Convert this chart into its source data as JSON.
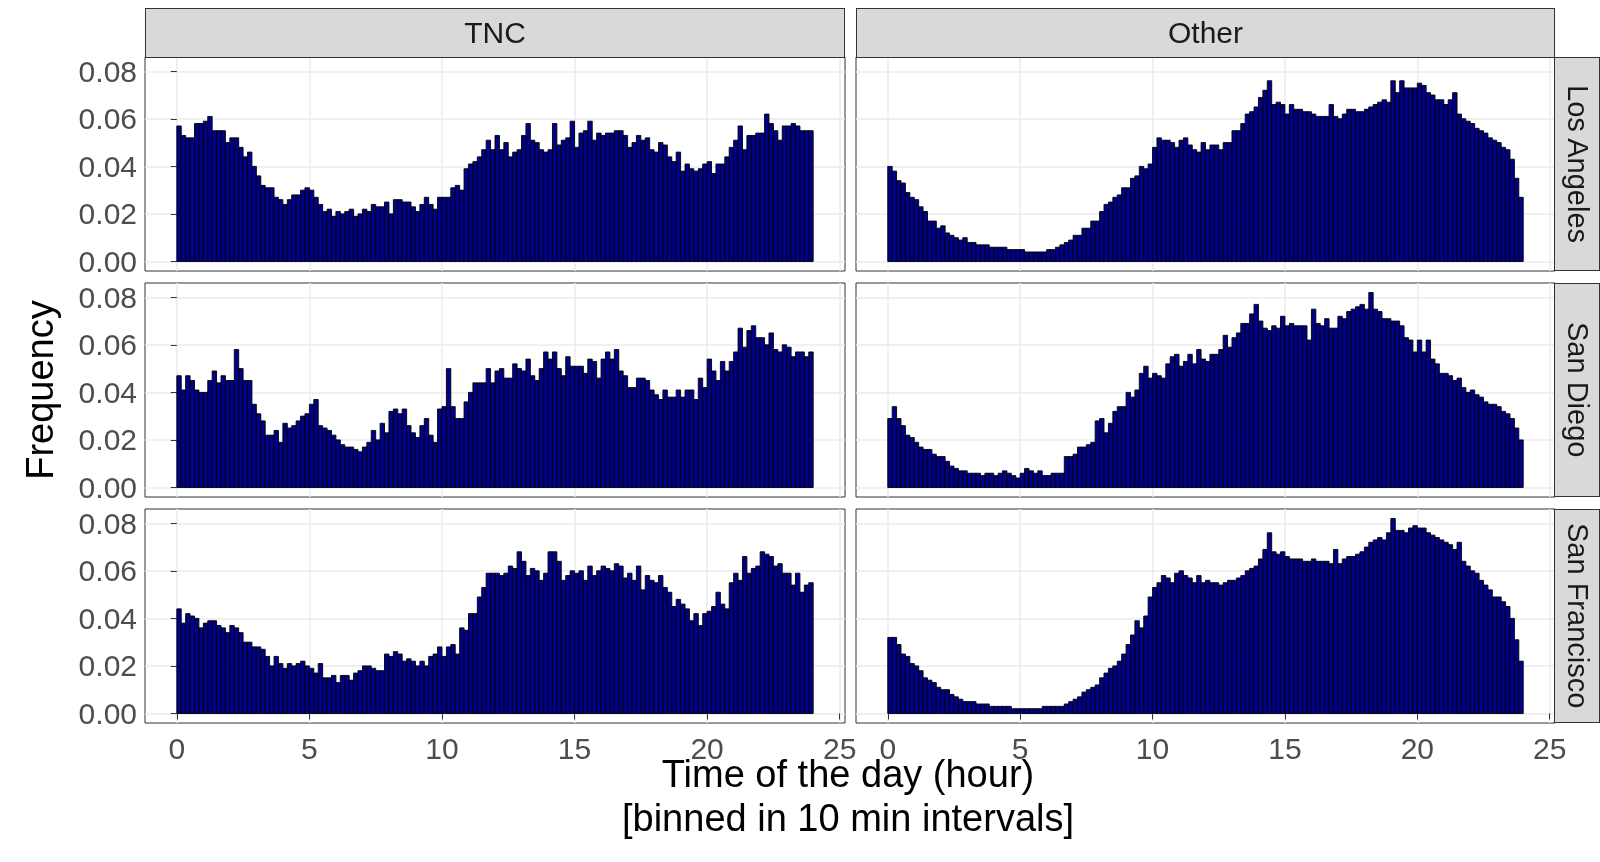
{
  "chart_data": [
    {
      "type": "histogram",
      "title": "TNC",
      "color": "#00008b",
      "tick_labels": "y",
      "grid": true,
      "xlim": [
        -1.2,
        25.2
      ],
      "xticks": [
        0,
        5,
        10,
        15,
        20,
        25
      ],
      "ylim": [
        -0.004,
        0.086
      ],
      "yticks": [
        {
          "value": 0,
          "label": "0.00"
        },
        {
          "value": 0.02,
          "label": "0.02"
        },
        {
          "value": 0.04,
          "label": "0.04"
        },
        {
          "value": 0.06,
          "label": "0.06"
        },
        {
          "value": 0.08,
          "label": "0.08"
        }
      ],
      "bins": [
        0,
        0.167,
        0.333,
        0.5,
        0.667,
        0.833,
        1,
        1.167,
        1.333,
        1.5,
        1.667,
        1.833,
        2,
        2.167,
        2.333,
        2.5,
        2.667,
        2.833,
        3,
        3.167,
        3.333,
        3.5,
        3.667,
        3.833,
        4,
        4.167,
        4.333,
        4.5,
        4.667,
        4.833,
        5,
        5.167,
        5.333,
        5.5,
        5.667,
        5.833,
        6,
        6.167,
        6.333,
        6.5,
        6.667,
        6.833,
        7,
        7.167,
        7.333,
        7.5,
        7.667,
        7.833,
        8,
        8.167,
        8.333,
        8.5,
        8.667,
        8.833,
        9,
        9.167,
        9.333,
        9.5,
        9.667,
        9.833,
        10,
        10.167,
        10.333,
        10.5,
        10.667,
        10.833,
        11,
        11.167,
        11.333,
        11.5,
        11.667,
        11.833,
        12,
        12.167,
        12.333,
        12.5,
        12.667,
        12.833,
        13,
        13.167,
        13.333,
        13.5,
        13.667,
        13.833,
        14,
        14.167,
        14.333,
        14.5,
        14.667,
        14.833,
        15,
        15.167,
        15.333,
        15.5,
        15.667,
        15.833,
        16,
        16.167,
        16.333,
        16.5,
        16.667,
        16.833,
        17,
        17.167,
        17.333,
        17.5,
        17.667,
        17.833,
        18,
        18.167,
        18.333,
        18.5,
        18.667,
        18.833,
        19,
        19.167,
        19.333,
        19.5,
        19.667,
        19.833,
        20,
        20.167,
        20.333,
        20.5,
        20.667,
        20.833,
        21,
        21.167,
        21.333,
        21.5,
        21.667,
        21.833,
        22,
        22.167,
        22.333,
        22.5,
        22.667,
        22.833,
        23,
        23.167,
        23.333,
        23.5,
        23.667,
        23.833,
        24
      ],
      "values": [
        0.057,
        0.053,
        0.052,
        0.052,
        0.058,
        0.058,
        0.059,
        0.061,
        0.055,
        0.055,
        0.055,
        0.05,
        0.052,
        0.052,
        0.048,
        0.044,
        0.046,
        0.04,
        0.036,
        0.032,
        0.031,
        0.031,
        0.027,
        0.026,
        0.024,
        0.026,
        0.028,
        0.028,
        0.03,
        0.031,
        0.03,
        0.027,
        0.024,
        0.021,
        0.022,
        0.019,
        0.021,
        0.02,
        0.021,
        0.022,
        0.019,
        0.02,
        0.022,
        0.021,
        0.024,
        0.023,
        0.023,
        0.025,
        0.02,
        0.026,
        0.026,
        0.025,
        0.025,
        0.023,
        0.021,
        0.024,
        0.027,
        0.024,
        0.022,
        0.027,
        0.027,
        0.027,
        0.031,
        0.032,
        0.03,
        0.039,
        0.041,
        0.042,
        0.044,
        0.047,
        0.051,
        0.047,
        0.053,
        0.047,
        0.05,
        0.044,
        0.046,
        0.047,
        0.053,
        0.058,
        0.051,
        0.05,
        0.047,
        0.046,
        0.047,
        0.058,
        0.049,
        0.051,
        0.052,
        0.059,
        0.048,
        0.054,
        0.055,
        0.059,
        0.051,
        0.054,
        0.053,
        0.054,
        0.054,
        0.055,
        0.055,
        0.053,
        0.048,
        0.05,
        0.053,
        0.051,
        0.052,
        0.047,
        0.046,
        0.05,
        0.049,
        0.044,
        0.042,
        0.046,
        0.038,
        0.041,
        0.039,
        0.038,
        0.039,
        0.041,
        0.042,
        0.037,
        0.041,
        0.041,
        0.044,
        0.048,
        0.051,
        0.057,
        0.047,
        0.053,
        0.053,
        0.054,
        0.054,
        0.062,
        0.058,
        0.055,
        0.051,
        0.057,
        0.057,
        0.058,
        0.057,
        0.055,
        0.055,
        0.055
      ]
    },
    {
      "type": "histogram",
      "title": "Other",
      "annotations": [
        "Los Angeles"
      ],
      "color": "#00008b",
      "tick_labels": false,
      "grid": true,
      "xlim": [
        -1.2,
        25.2
      ],
      "xticks": [
        0,
        5,
        10,
        15,
        20,
        25
      ],
      "ylim": [
        -0.004,
        0.086
      ],
      "yticks": [
        0,
        0.02,
        0.04,
        0.06,
        0.08
      ],
      "bins": [
        0,
        0.167,
        0.333,
        0.5,
        0.667,
        0.833,
        1,
        1.167,
        1.333,
        1.5,
        1.667,
        1.833,
        2,
        2.167,
        2.333,
        2.5,
        2.667,
        2.833,
        3,
        3.167,
        3.333,
        3.5,
        3.667,
        3.833,
        4,
        4.167,
        4.333,
        4.5,
        4.667,
        4.833,
        5,
        5.167,
        5.333,
        5.5,
        5.667,
        5.833,
        6,
        6.167,
        6.333,
        6.5,
        6.667,
        6.833,
        7,
        7.167,
        7.333,
        7.5,
        7.667,
        7.833,
        8,
        8.167,
        8.333,
        8.5,
        8.667,
        8.833,
        9,
        9.167,
        9.333,
        9.5,
        9.667,
        9.833,
        10,
        10.167,
        10.333,
        10.5,
        10.667,
        10.833,
        11,
        11.167,
        11.333,
        11.5,
        11.667,
        11.833,
        12,
        12.167,
        12.333,
        12.5,
        12.667,
        12.833,
        13,
        13.167,
        13.333,
        13.5,
        13.667,
        13.833,
        14,
        14.167,
        14.333,
        14.5,
        14.667,
        14.833,
        15,
        15.167,
        15.333,
        15.5,
        15.667,
        15.833,
        16,
        16.167,
        16.333,
        16.5,
        16.667,
        16.833,
        17,
        17.167,
        17.333,
        17.5,
        17.667,
        17.833,
        18,
        18.167,
        18.333,
        18.5,
        18.667,
        18.833,
        19,
        19.167,
        19.333,
        19.5,
        19.667,
        19.833,
        20,
        20.167,
        20.333,
        20.5,
        20.667,
        20.833,
        21,
        21.167,
        21.333,
        21.5,
        21.667,
        21.833,
        22,
        22.167,
        22.333,
        22.5,
        22.667,
        22.833,
        23,
        23.167,
        23.333,
        23.5,
        23.667,
        23.833,
        24
      ],
      "values": [
        0.04,
        0.038,
        0.034,
        0.033,
        0.029,
        0.027,
        0.026,
        0.023,
        0.021,
        0.017,
        0.017,
        0.014,
        0.015,
        0.012,
        0.011,
        0.01,
        0.009,
        0.01,
        0.008,
        0.008,
        0.007,
        0.007,
        0.007,
        0.006,
        0.006,
        0.006,
        0.006,
        0.005,
        0.005,
        0.005,
        0.005,
        0.004,
        0.004,
        0.004,
        0.004,
        0.004,
        0.005,
        0.005,
        0.006,
        0.007,
        0.008,
        0.009,
        0.011,
        0.011,
        0.014,
        0.014,
        0.017,
        0.017,
        0.021,
        0.024,
        0.025,
        0.027,
        0.028,
        0.031,
        0.031,
        0.035,
        0.036,
        0.04,
        0.039,
        0.041,
        0.048,
        0.052,
        0.051,
        0.051,
        0.05,
        0.048,
        0.051,
        0.052,
        0.049,
        0.047,
        0.046,
        0.05,
        0.047,
        0.049,
        0.049,
        0.047,
        0.05,
        0.05,
        0.055,
        0.055,
        0.058,
        0.062,
        0.063,
        0.065,
        0.069,
        0.072,
        0.076,
        0.066,
        0.067,
        0.066,
        0.062,
        0.066,
        0.064,
        0.064,
        0.063,
        0.063,
        0.062,
        0.061,
        0.061,
        0.061,
        0.066,
        0.061,
        0.06,
        0.062,
        0.064,
        0.064,
        0.063,
        0.063,
        0.064,
        0.065,
        0.066,
        0.067,
        0.068,
        0.067,
        0.076,
        0.071,
        0.076,
        0.073,
        0.073,
        0.073,
        0.075,
        0.074,
        0.071,
        0.07,
        0.068,
        0.068,
        0.066,
        0.068,
        0.071,
        0.062,
        0.06,
        0.059,
        0.058,
        0.056,
        0.055,
        0.054,
        0.052,
        0.051,
        0.05,
        0.048,
        0.047,
        0.043,
        0.035,
        0.027
      ]
    },
    {
      "type": "histogram",
      "ylabel": "Frequency",
      "color": "#00008b",
      "tick_labels": "y",
      "grid": true,
      "xlim": [
        -1.2,
        25.2
      ],
      "xticks": [
        0,
        5,
        10,
        15,
        20,
        25
      ],
      "ylim": [
        -0.004,
        0.086
      ],
      "yticks": [
        {
          "value": 0,
          "label": "0.00"
        },
        {
          "value": 0.02,
          "label": "0.02"
        },
        {
          "value": 0.04,
          "label": "0.04"
        },
        {
          "value": 0.06,
          "label": "0.06"
        },
        {
          "value": 0.08,
          "label": "0.08"
        }
      ],
      "bins": [
        0,
        0.167,
        0.333,
        0.5,
        0.667,
        0.833,
        1,
        1.167,
        1.333,
        1.5,
        1.667,
        1.833,
        2,
        2.167,
        2.333,
        2.5,
        2.667,
        2.833,
        3,
        3.167,
        3.333,
        3.5,
        3.667,
        3.833,
        4,
        4.167,
        4.333,
        4.5,
        4.667,
        4.833,
        5,
        5.167,
        5.333,
        5.5,
        5.667,
        5.833,
        6,
        6.167,
        6.333,
        6.5,
        6.667,
        6.833,
        7,
        7.167,
        7.333,
        7.5,
        7.667,
        7.833,
        8,
        8.167,
        8.333,
        8.5,
        8.667,
        8.833,
        9,
        9.167,
        9.333,
        9.5,
        9.667,
        9.833,
        10,
        10.167,
        10.333,
        10.5,
        10.667,
        10.833,
        11,
        11.167,
        11.333,
        11.5,
        11.667,
        11.833,
        12,
        12.167,
        12.333,
        12.5,
        12.667,
        12.833,
        13,
        13.167,
        13.333,
        13.5,
        13.667,
        13.833,
        14,
        14.167,
        14.333,
        14.5,
        14.667,
        14.833,
        15,
        15.167,
        15.333,
        15.5,
        15.667,
        15.833,
        16,
        16.167,
        16.333,
        16.5,
        16.667,
        16.833,
        17,
        17.167,
        17.333,
        17.5,
        17.667,
        17.833,
        18,
        18.167,
        18.333,
        18.5,
        18.667,
        18.833,
        19,
        19.167,
        19.333,
        19.5,
        19.667,
        19.833,
        20,
        20.167,
        20.333,
        20.5,
        20.667,
        20.833,
        21,
        21.167,
        21.333,
        21.5,
        21.667,
        21.833,
        22,
        22.167,
        22.333,
        22.5,
        22.667,
        22.833,
        23,
        23.167,
        23.333,
        23.5,
        23.667,
        23.833,
        24
      ],
      "values": [
        0.047,
        0.041,
        0.047,
        0.045,
        0.041,
        0.04,
        0.04,
        0.045,
        0.049,
        0.044,
        0.047,
        0.045,
        0.045,
        0.058,
        0.05,
        0.045,
        0.045,
        0.035,
        0.031,
        0.028,
        0.022,
        0.022,
        0.024,
        0.019,
        0.027,
        0.025,
        0.026,
        0.028,
        0.03,
        0.031,
        0.035,
        0.037,
        0.026,
        0.025,
        0.024,
        0.022,
        0.02,
        0.018,
        0.017,
        0.017,
        0.016,
        0.015,
        0.017,
        0.019,
        0.024,
        0.02,
        0.027,
        0.023,
        0.032,
        0.033,
        0.031,
        0.033,
        0.026,
        0.023,
        0.021,
        0.026,
        0.029,
        0.022,
        0.019,
        0.033,
        0.034,
        0.05,
        0.034,
        0.029,
        0.029,
        0.036,
        0.04,
        0.044,
        0.044,
        0.044,
        0.05,
        0.044,
        0.049,
        0.05,
        0.046,
        0.046,
        0.052,
        0.05,
        0.049,
        0.054,
        0.047,
        0.045,
        0.05,
        0.057,
        0.054,
        0.057,
        0.05,
        0.047,
        0.055,
        0.051,
        0.051,
        0.051,
        0.048,
        0.054,
        0.053,
        0.046,
        0.054,
        0.057,
        0.054,
        0.058,
        0.049,
        0.047,
        0.042,
        0.042,
        0.046,
        0.046,
        0.045,
        0.041,
        0.039,
        0.037,
        0.041,
        0.038,
        0.038,
        0.041,
        0.038,
        0.041,
        0.041,
        0.037,
        0.046,
        0.042,
        0.054,
        0.049,
        0.045,
        0.053,
        0.049,
        0.053,
        0.057,
        0.067,
        0.059,
        0.066,
        0.068,
        0.063,
        0.063,
        0.06,
        0.065,
        0.058,
        0.057,
        0.06,
        0.059,
        0.055,
        0.057,
        0.057,
        0.055,
        0.057
      ]
    },
    {
      "type": "histogram",
      "annotations": [
        "San Diego"
      ],
      "color": "#00008b",
      "tick_labels": false,
      "grid": true,
      "xlim": [
        -1.2,
        25.2
      ],
      "xticks": [
        0,
        5,
        10,
        15,
        20,
        25
      ],
      "ylim": [
        -0.004,
        0.086
      ],
      "yticks": [
        0,
        0.02,
        0.04,
        0.06,
        0.08
      ],
      "bins": [
        0,
        0.167,
        0.333,
        0.5,
        0.667,
        0.833,
        1,
        1.167,
        1.333,
        1.5,
        1.667,
        1.833,
        2,
        2.167,
        2.333,
        2.5,
        2.667,
        2.833,
        3,
        3.167,
        3.333,
        3.5,
        3.667,
        3.833,
        4,
        4.167,
        4.333,
        4.5,
        4.667,
        4.833,
        5,
        5.167,
        5.333,
        5.5,
        5.667,
        5.833,
        6,
        6.167,
        6.333,
        6.5,
        6.667,
        6.833,
        7,
        7.167,
        7.333,
        7.5,
        7.667,
        7.833,
        8,
        8.167,
        8.333,
        8.5,
        8.667,
        8.833,
        9,
        9.167,
        9.333,
        9.5,
        9.667,
        9.833,
        10,
        10.167,
        10.333,
        10.5,
        10.667,
        10.833,
        11,
        11.167,
        11.333,
        11.5,
        11.667,
        11.833,
        12,
        12.167,
        12.333,
        12.5,
        12.667,
        12.833,
        13,
        13.167,
        13.333,
        13.5,
        13.667,
        13.833,
        14,
        14.167,
        14.333,
        14.5,
        14.667,
        14.833,
        15,
        15.167,
        15.333,
        15.5,
        15.667,
        15.833,
        16,
        16.167,
        16.333,
        16.5,
        16.667,
        16.833,
        17,
        17.167,
        17.333,
        17.5,
        17.667,
        17.833,
        18,
        18.167,
        18.333,
        18.5,
        18.667,
        18.833,
        19,
        19.167,
        19.333,
        19.5,
        19.667,
        19.833,
        20,
        20.167,
        20.333,
        20.5,
        20.667,
        20.833,
        21,
        21.167,
        21.333,
        21.5,
        21.667,
        21.833,
        22,
        22.167,
        22.333,
        22.5,
        22.667,
        22.833,
        23,
        23.167,
        23.333,
        23.5,
        23.667,
        23.833,
        24
      ],
      "values": [
        0.029,
        0.034,
        0.029,
        0.026,
        0.022,
        0.021,
        0.019,
        0.017,
        0.016,
        0.016,
        0.014,
        0.013,
        0.013,
        0.011,
        0.009,
        0.008,
        0.007,
        0.007,
        0.006,
        0.006,
        0.006,
        0.005,
        0.006,
        0.006,
        0.005,
        0.006,
        0.007,
        0.006,
        0.005,
        0.004,
        0.006,
        0.008,
        0.007,
        0.006,
        0.007,
        0.005,
        0.005,
        0.006,
        0.006,
        0.006,
        0.013,
        0.013,
        0.014,
        0.017,
        0.017,
        0.018,
        0.019,
        0.028,
        0.029,
        0.023,
        0.027,
        0.032,
        0.034,
        0.034,
        0.04,
        0.038,
        0.041,
        0.048,
        0.051,
        0.046,
        0.048,
        0.047,
        0.046,
        0.052,
        0.055,
        0.056,
        0.051,
        0.053,
        0.056,
        0.052,
        0.058,
        0.054,
        0.053,
        0.056,
        0.056,
        0.058,
        0.064,
        0.059,
        0.063,
        0.065,
        0.069,
        0.069,
        0.073,
        0.077,
        0.07,
        0.067,
        0.066,
        0.068,
        0.067,
        0.072,
        0.068,
        0.069,
        0.068,
        0.068,
        0.068,
        0.062,
        0.075,
        0.069,
        0.068,
        0.071,
        0.067,
        0.067,
        0.072,
        0.071,
        0.074,
        0.075,
        0.076,
        0.077,
        0.075,
        0.082,
        0.075,
        0.074,
        0.071,
        0.071,
        0.07,
        0.07,
        0.068,
        0.063,
        0.062,
        0.057,
        0.062,
        0.057,
        0.062,
        0.054,
        0.052,
        0.048,
        0.048,
        0.047,
        0.045,
        0.046,
        0.042,
        0.04,
        0.041,
        0.039,
        0.038,
        0.036,
        0.035,
        0.035,
        0.034,
        0.032,
        0.031,
        0.029,
        0.025,
        0.02
      ]
    },
    {
      "type": "histogram",
      "xlabel": "Time of the day (hour)\n[binned in 10 min intervals]",
      "color": "#00008b",
      "grid": true,
      "xlim": [
        -1.2,
        25.2
      ],
      "xticks": [
        0,
        5,
        10,
        15,
        20,
        25
      ],
      "ylim": [
        -0.004,
        0.086
      ],
      "yticks": [
        {
          "value": 0,
          "label": "0.00"
        },
        {
          "value": 0.02,
          "label": "0.02"
        },
        {
          "value": 0.04,
          "label": "0.04"
        },
        {
          "value": 0.06,
          "label": "0.06"
        },
        {
          "value": 0.08,
          "label": "0.08"
        }
      ],
      "bins": [
        0,
        0.167,
        0.333,
        0.5,
        0.667,
        0.833,
        1,
        1.167,
        1.333,
        1.5,
        1.667,
        1.833,
        2,
        2.167,
        2.333,
        2.5,
        2.667,
        2.833,
        3,
        3.167,
        3.333,
        3.5,
        3.667,
        3.833,
        4,
        4.167,
        4.333,
        4.5,
        4.667,
        4.833,
        5,
        5.167,
        5.333,
        5.5,
        5.667,
        5.833,
        6,
        6.167,
        6.333,
        6.5,
        6.667,
        6.833,
        7,
        7.167,
        7.333,
        7.5,
        7.667,
        7.833,
        8,
        8.167,
        8.333,
        8.5,
        8.667,
        8.833,
        9,
        9.167,
        9.333,
        9.5,
        9.667,
        9.833,
        10,
        10.167,
        10.333,
        10.5,
        10.667,
        10.833,
        11,
        11.167,
        11.333,
        11.5,
        11.667,
        11.833,
        12,
        12.167,
        12.333,
        12.5,
        12.667,
        12.833,
        13,
        13.167,
        13.333,
        13.5,
        13.667,
        13.833,
        14,
        14.167,
        14.333,
        14.5,
        14.667,
        14.833,
        15,
        15.167,
        15.333,
        15.5,
        15.667,
        15.833,
        16,
        16.167,
        16.333,
        16.5,
        16.667,
        16.833,
        17,
        17.167,
        17.333,
        17.5,
        17.667,
        17.833,
        18,
        18.167,
        18.333,
        18.5,
        18.667,
        18.833,
        19,
        19.167,
        19.333,
        19.5,
        19.667,
        19.833,
        20,
        20.167,
        20.333,
        20.5,
        20.667,
        20.833,
        21,
        21.167,
        21.333,
        21.5,
        21.667,
        21.833,
        22,
        22.167,
        22.333,
        22.5,
        22.667,
        22.833,
        23,
        23.167,
        23.333,
        23.5,
        23.667,
        23.833,
        24
      ],
      "values": [
        0.044,
        0.038,
        0.042,
        0.041,
        0.04,
        0.036,
        0.038,
        0.039,
        0.039,
        0.037,
        0.036,
        0.034,
        0.037,
        0.036,
        0.034,
        0.03,
        0.03,
        0.028,
        0.028,
        0.027,
        0.024,
        0.02,
        0.024,
        0.021,
        0.019,
        0.021,
        0.02,
        0.021,
        0.022,
        0.02,
        0.019,
        0.017,
        0.021,
        0.015,
        0.015,
        0.016,
        0.013,
        0.016,
        0.016,
        0.014,
        0.017,
        0.018,
        0.02,
        0.02,
        0.019,
        0.018,
        0.018,
        0.025,
        0.024,
        0.026,
        0.025,
        0.022,
        0.023,
        0.022,
        0.02,
        0.022,
        0.02,
        0.024,
        0.025,
        0.028,
        0.024,
        0.028,
        0.029,
        0.025,
        0.036,
        0.035,
        0.042,
        0.042,
        0.049,
        0.053,
        0.059,
        0.059,
        0.059,
        0.058,
        0.059,
        0.062,
        0.061,
        0.068,
        0.064,
        0.058,
        0.061,
        0.06,
        0.056,
        0.059,
        0.068,
        0.068,
        0.064,
        0.056,
        0.058,
        0.06,
        0.059,
        0.06,
        0.056,
        0.062,
        0.058,
        0.06,
        0.062,
        0.061,
        0.06,
        0.063,
        0.062,
        0.057,
        0.059,
        0.056,
        0.062,
        0.052,
        0.058,
        0.056,
        0.055,
        0.058,
        0.053,
        0.051,
        0.045,
        0.048,
        0.046,
        0.044,
        0.039,
        0.042,
        0.037,
        0.042,
        0.043,
        0.045,
        0.051,
        0.046,
        0.044,
        0.055,
        0.059,
        0.056,
        0.066,
        0.059,
        0.061,
        0.062,
        0.068,
        0.067,
        0.066,
        0.062,
        0.063,
        0.059,
        0.059,
        0.054,
        0.059,
        0.051,
        0.054,
        0.055
      ]
    },
    {
      "type": "histogram",
      "annotations": [
        "San Francisco"
      ],
      "color": "#00008b",
      "tick_labels": "x",
      "grid": true,
      "xlim": [
        -1.2,
        25.2
      ],
      "xticks": [
        0,
        5,
        10,
        15,
        20,
        25
      ],
      "ylim": [
        -0.004,
        0.086
      ],
      "yticks": [
        0,
        0.02,
        0.04,
        0.06,
        0.08
      ],
      "bins": [
        0,
        0.167,
        0.333,
        0.5,
        0.667,
        0.833,
        1,
        1.167,
        1.333,
        1.5,
        1.667,
        1.833,
        2,
        2.167,
        2.333,
        2.5,
        2.667,
        2.833,
        3,
        3.167,
        3.333,
        3.5,
        3.667,
        3.833,
        4,
        4.167,
        4.333,
        4.5,
        4.667,
        4.833,
        5,
        5.167,
        5.333,
        5.5,
        5.667,
        5.833,
        6,
        6.167,
        6.333,
        6.5,
        6.667,
        6.833,
        7,
        7.167,
        7.333,
        7.5,
        7.667,
        7.833,
        8,
        8.167,
        8.333,
        8.5,
        8.667,
        8.833,
        9,
        9.167,
        9.333,
        9.5,
        9.667,
        9.833,
        10,
        10.167,
        10.333,
        10.5,
        10.667,
        10.833,
        11,
        11.167,
        11.333,
        11.5,
        11.667,
        11.833,
        12,
        12.167,
        12.333,
        12.5,
        12.667,
        12.833,
        13,
        13.167,
        13.333,
        13.5,
        13.667,
        13.833,
        14,
        14.167,
        14.333,
        14.5,
        14.667,
        14.833,
        15,
        15.167,
        15.333,
        15.5,
        15.667,
        15.833,
        16,
        16.167,
        16.333,
        16.5,
        16.667,
        16.833,
        17,
        17.167,
        17.333,
        17.5,
        17.667,
        17.833,
        18,
        18.167,
        18.333,
        18.5,
        18.667,
        18.833,
        19,
        19.167,
        19.333,
        19.5,
        19.667,
        19.833,
        20,
        20.167,
        20.333,
        20.5,
        20.667,
        20.833,
        21,
        21.167,
        21.333,
        21.5,
        21.667,
        21.833,
        22,
        22.167,
        22.333,
        22.5,
        22.667,
        22.833,
        23,
        23.167,
        23.333,
        23.5,
        23.667,
        23.833,
        24
      ],
      "values": [
        0.032,
        0.032,
        0.029,
        0.025,
        0.024,
        0.021,
        0.02,
        0.018,
        0.015,
        0.014,
        0.013,
        0.011,
        0.01,
        0.01,
        0.008,
        0.007,
        0.006,
        0.005,
        0.005,
        0.005,
        0.004,
        0.004,
        0.004,
        0.003,
        0.003,
        0.003,
        0.003,
        0.003,
        0.002,
        0.002,
        0.002,
        0.002,
        0.002,
        0.002,
        0.002,
        0.003,
        0.003,
        0.003,
        0.003,
        0.003,
        0.004,
        0.005,
        0.006,
        0.007,
        0.009,
        0.01,
        0.011,
        0.012,
        0.015,
        0.017,
        0.019,
        0.02,
        0.022,
        0.025,
        0.029,
        0.033,
        0.039,
        0.036,
        0.041,
        0.049,
        0.053,
        0.055,
        0.058,
        0.057,
        0.055,
        0.059,
        0.06,
        0.058,
        0.057,
        0.055,
        0.058,
        0.055,
        0.056,
        0.055,
        0.055,
        0.054,
        0.055,
        0.056,
        0.056,
        0.057,
        0.058,
        0.06,
        0.061,
        0.062,
        0.065,
        0.069,
        0.076,
        0.068,
        0.067,
        0.068,
        0.066,
        0.065,
        0.065,
        0.065,
        0.064,
        0.064,
        0.065,
        0.064,
        0.064,
        0.064,
        0.063,
        0.069,
        0.063,
        0.065,
        0.066,
        0.066,
        0.067,
        0.068,
        0.07,
        0.072,
        0.073,
        0.074,
        0.073,
        0.076,
        0.082,
        0.077,
        0.077,
        0.076,
        0.078,
        0.079,
        0.078,
        0.078,
        0.076,
        0.075,
        0.074,
        0.073,
        0.072,
        0.071,
        0.069,
        0.072,
        0.064,
        0.062,
        0.06,
        0.059,
        0.056,
        0.054,
        0.052,
        0.049,
        0.049,
        0.047,
        0.045,
        0.04,
        0.031,
        0.022
      ]
    }
  ]
}
